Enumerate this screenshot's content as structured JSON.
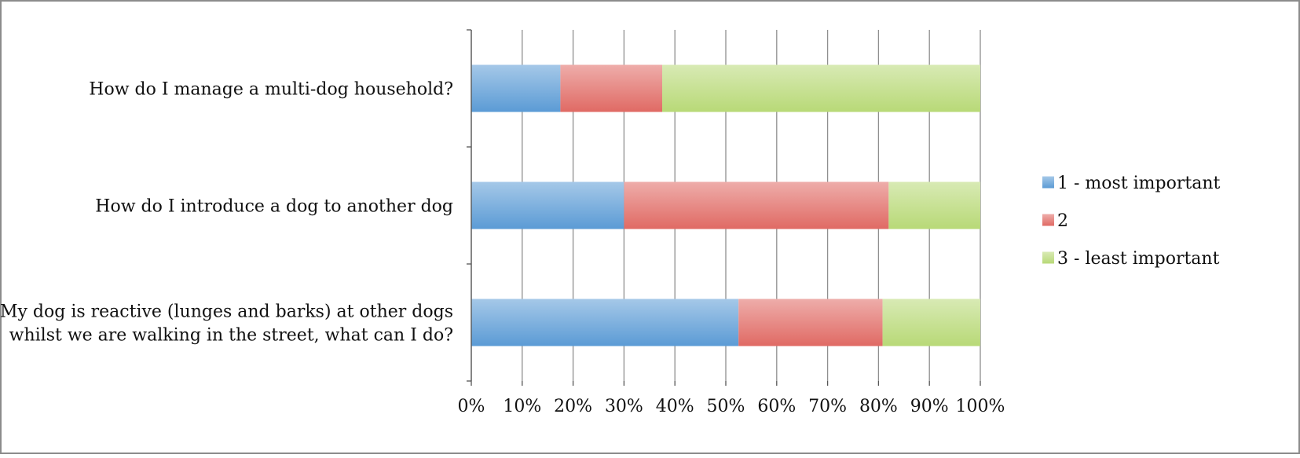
{
  "chart_data": {
    "type": "bar",
    "orientation": "horizontal",
    "stacked": "percent",
    "categories": [
      [
        "How do I manage a multi-dog household?"
      ],
      [
        "How do I introduce a dog to another dog"
      ],
      [
        "My dog is reactive (lunges and barks) at other dogs",
        "whilst we are walking in the street, what can I do?"
      ]
    ],
    "series": [
      {
        "name": "1 - most important",
        "values": [
          17.5,
          30,
          52.5
        ],
        "color": "#5b9bd5"
      },
      {
        "name": "2",
        "values": [
          20,
          52,
          28.3
        ],
        "color": "#e06a64"
      },
      {
        "name": "3 - least important",
        "values": [
          62.5,
          18,
          19.2
        ],
        "color": "#b8d977"
      }
    ],
    "xlim": [
      0,
      100
    ],
    "xticks": [
      "0%",
      "10%",
      "20%",
      "30%",
      "40%",
      "50%",
      "60%",
      "70%",
      "80%",
      "90%",
      "100%"
    ],
    "grid": true,
    "legend_position": "right"
  }
}
